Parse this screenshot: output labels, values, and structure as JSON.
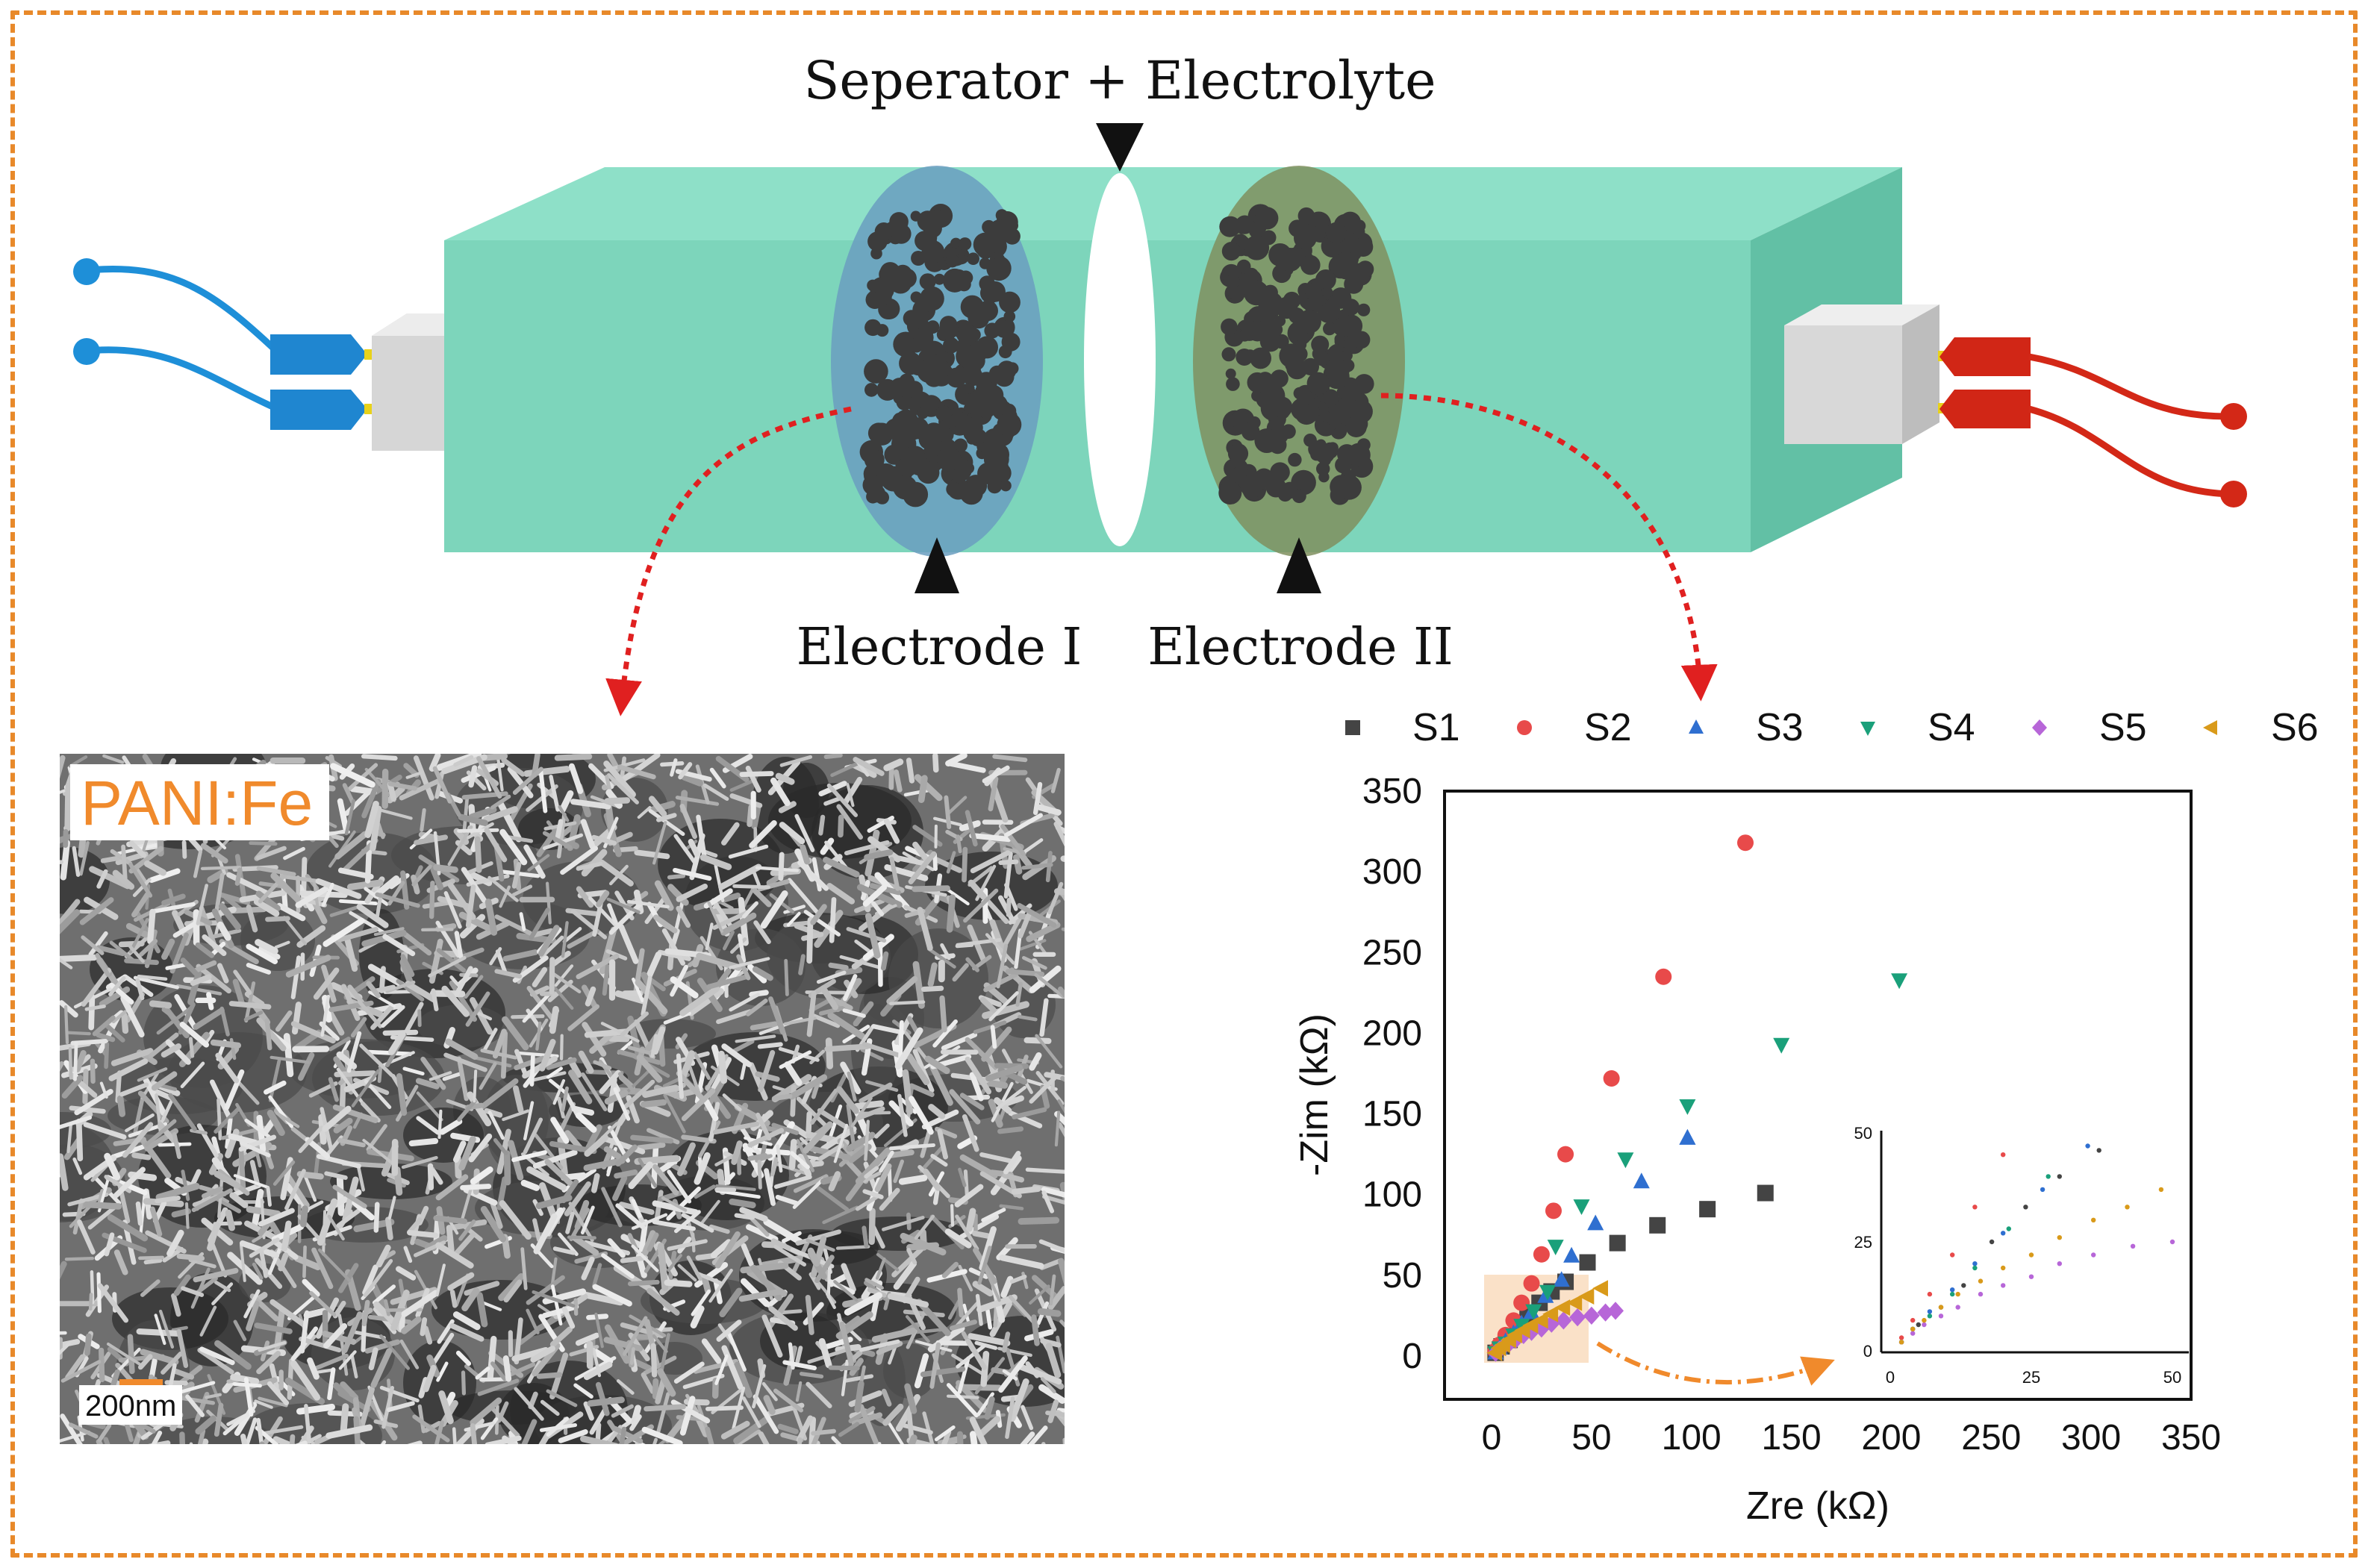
{
  "diagram": {
    "separator_label": "Seperator + Electrolyte",
    "electrode1_label": "Electrode I",
    "electrode2_label": "Electrode II",
    "colors": {
      "cell_front": "#7dd5bb",
      "cell_top": "#8ee0c8",
      "cell_side": "#62c0a5",
      "electrode1_fill": "#6a9ec0",
      "electrode2_fill": "#7f8f5e",
      "particle": "#3c3c3c",
      "negative_wire": "#1e8fd8",
      "positive_wire": "#d32817",
      "arrow": "#e02020",
      "frame": "#e8892a"
    }
  },
  "sem_image": {
    "label": "PANI:Fe",
    "scale_label": "200nm"
  },
  "chart_data": {
    "type": "scatter",
    "xlabel": "Zre (kΩ)",
    "ylabel": "-Zim (kΩ)",
    "xlim": [
      0,
      350
    ],
    "ylim": [
      0,
      350
    ],
    "xticks": [
      "0",
      "50",
      "100",
      "150",
      "200",
      "250",
      "300",
      "350"
    ],
    "yticks": [
      "0",
      "50",
      "100",
      "150",
      "200",
      "250",
      "300",
      "350"
    ],
    "legend_position": "top",
    "series": [
      {
        "name": "S1",
        "marker": "square",
        "color": "#444444",
        "points": [
          [
            2,
            2
          ],
          [
            5,
            6
          ],
          [
            9,
            10
          ],
          [
            13,
            15
          ],
          [
            18,
            25
          ],
          [
            24,
            33
          ],
          [
            30,
            40
          ],
          [
            37,
            46
          ],
          [
            48,
            58
          ],
          [
            63,
            70
          ],
          [
            83,
            81
          ],
          [
            108,
            91
          ],
          [
            137,
            101
          ]
        ]
      },
      {
        "name": "S2",
        "marker": "circle",
        "color": "#e84a4a",
        "points": [
          [
            2,
            3
          ],
          [
            4,
            7
          ],
          [
            7,
            13
          ],
          [
            11,
            22
          ],
          [
            15,
            33
          ],
          [
            20,
            45
          ],
          [
            25,
            63
          ],
          [
            31,
            90
          ],
          [
            37,
            125
          ],
          [
            60,
            172
          ],
          [
            86,
            235
          ],
          [
            127,
            318
          ]
        ]
      },
      {
        "name": "S3",
        "marker": "triangle-up",
        "color": "#2f6fd0",
        "points": [
          [
            2,
            2
          ],
          [
            4,
            5
          ],
          [
            7,
            9
          ],
          [
            11,
            14
          ],
          [
            15,
            20
          ],
          [
            20,
            27
          ],
          [
            27,
            37
          ],
          [
            35,
            47
          ],
          [
            40,
            62
          ],
          [
            52,
            82
          ],
          [
            75,
            108
          ],
          [
            98,
            135
          ],
          [
            98,
            135
          ]
        ]
      },
      {
        "name": "S4",
        "marker": "triangle-down",
        "color": "#1aa07a",
        "points": [
          [
            2,
            2
          ],
          [
            4,
            5
          ],
          [
            7,
            8
          ],
          [
            11,
            13
          ],
          [
            15,
            19
          ],
          [
            21,
            28
          ],
          [
            28,
            40
          ],
          [
            32,
            68
          ],
          [
            45,
            93
          ],
          [
            67,
            122
          ],
          [
            98,
            155
          ],
          [
            145,
            193
          ],
          [
            204,
            233
          ]
        ]
      },
      {
        "name": "S5",
        "marker": "diamond",
        "color": "#b766d8",
        "points": [
          [
            2,
            2
          ],
          [
            4,
            4
          ],
          [
            6,
            6
          ],
          [
            9,
            8
          ],
          [
            12,
            10
          ],
          [
            16,
            13
          ],
          [
            20,
            15
          ],
          [
            25,
            17
          ],
          [
            30,
            20
          ],
          [
            36,
            22
          ],
          [
            43,
            24
          ],
          [
            50,
            25
          ],
          [
            57,
            27
          ],
          [
            62,
            28
          ]
        ]
      },
      {
        "name": "S6",
        "marker": "triangle-left",
        "color": "#d99a1a",
        "points": [
          [
            2,
            2
          ],
          [
            4,
            5
          ],
          [
            6,
            7
          ],
          [
            9,
            10
          ],
          [
            12,
            13
          ],
          [
            16,
            16
          ],
          [
            20,
            19
          ],
          [
            25,
            22
          ],
          [
            30,
            26
          ],
          [
            36,
            30
          ],
          [
            42,
            33
          ],
          [
            48,
            37
          ],
          [
            55,
            42
          ]
        ]
      }
    ],
    "inset": {
      "xlim": [
        0,
        50
      ],
      "ylim": [
        0,
        50
      ],
      "xticks": [
        "0",
        "25",
        "50"
      ],
      "yticks": [
        "0",
        "25",
        "50"
      ]
    }
  }
}
